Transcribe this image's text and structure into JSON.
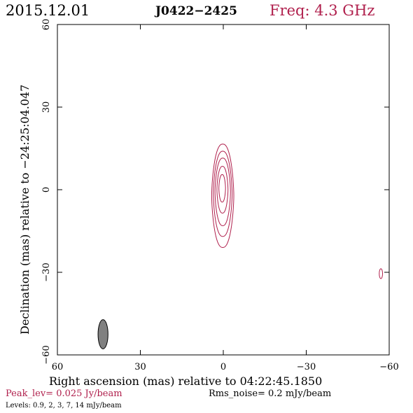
{
  "header": {
    "date": "2015.12.01",
    "source": "J0422−2425",
    "freq": "Freq: 4.3 GHz"
  },
  "footer": {
    "peak": "Peak_lev=  0.025 Jy/beam",
    "rms": "Rms_noise=   0.2 mJy/beam",
    "levels": "Levels: 0.9,   2,   3,   7,  14 mJy/beam"
  },
  "colors": {
    "accent": "#b0204d",
    "axis": "#000000",
    "beam_fill": "#808080"
  },
  "chart_data": {
    "type": "contour",
    "xlabel": "Right ascension (mas) relative to 04:22:45.1850",
    "ylabel": "Declination (mas) relative to −24:25:04.047",
    "xlim": [
      60,
      -60
    ],
    "ylim": [
      -60,
      60
    ],
    "x_ticks": [
      60,
      30,
      0,
      -30,
      -60
    ],
    "x_tick_labels": [
      "60",
      "30",
      "0",
      "−30",
      "−60"
    ],
    "y_ticks": [
      -60,
      -30,
      0,
      30,
      60
    ],
    "y_tick_labels": [
      "−60",
      "−30",
      "0",
      "30",
      "60"
    ],
    "contour_levels_mJy": [
      0.9,
      2,
      3,
      7,
      14
    ],
    "contours": [
      {
        "level": 0.9,
        "cx": 0.2,
        "cy": -2.2,
        "half_width": 4.0,
        "half_height": 18.8
      },
      {
        "level": 2,
        "cx": 0.2,
        "cy": -1.5,
        "half_width": 3.4,
        "half_height": 15.5
      },
      {
        "level": 3,
        "cx": 0.2,
        "cy": -0.8,
        "half_width": 2.8,
        "half_height": 12.3
      },
      {
        "level": 7,
        "cx": 0.3,
        "cy": 0.0,
        "half_width": 2.0,
        "half_height": 8.5
      },
      {
        "level": 14,
        "cx": 0.4,
        "cy": 0.5,
        "half_width": 1.2,
        "half_height": 5.0
      }
    ],
    "secondary_component": {
      "level": 0.9,
      "cx": -57.0,
      "cy": -30.5,
      "half_width": 0.6,
      "half_height": 1.8
    },
    "beam": {
      "cx": 43.5,
      "cy": -52.5,
      "half_width": 1.8,
      "half_height": 5.3
    }
  }
}
